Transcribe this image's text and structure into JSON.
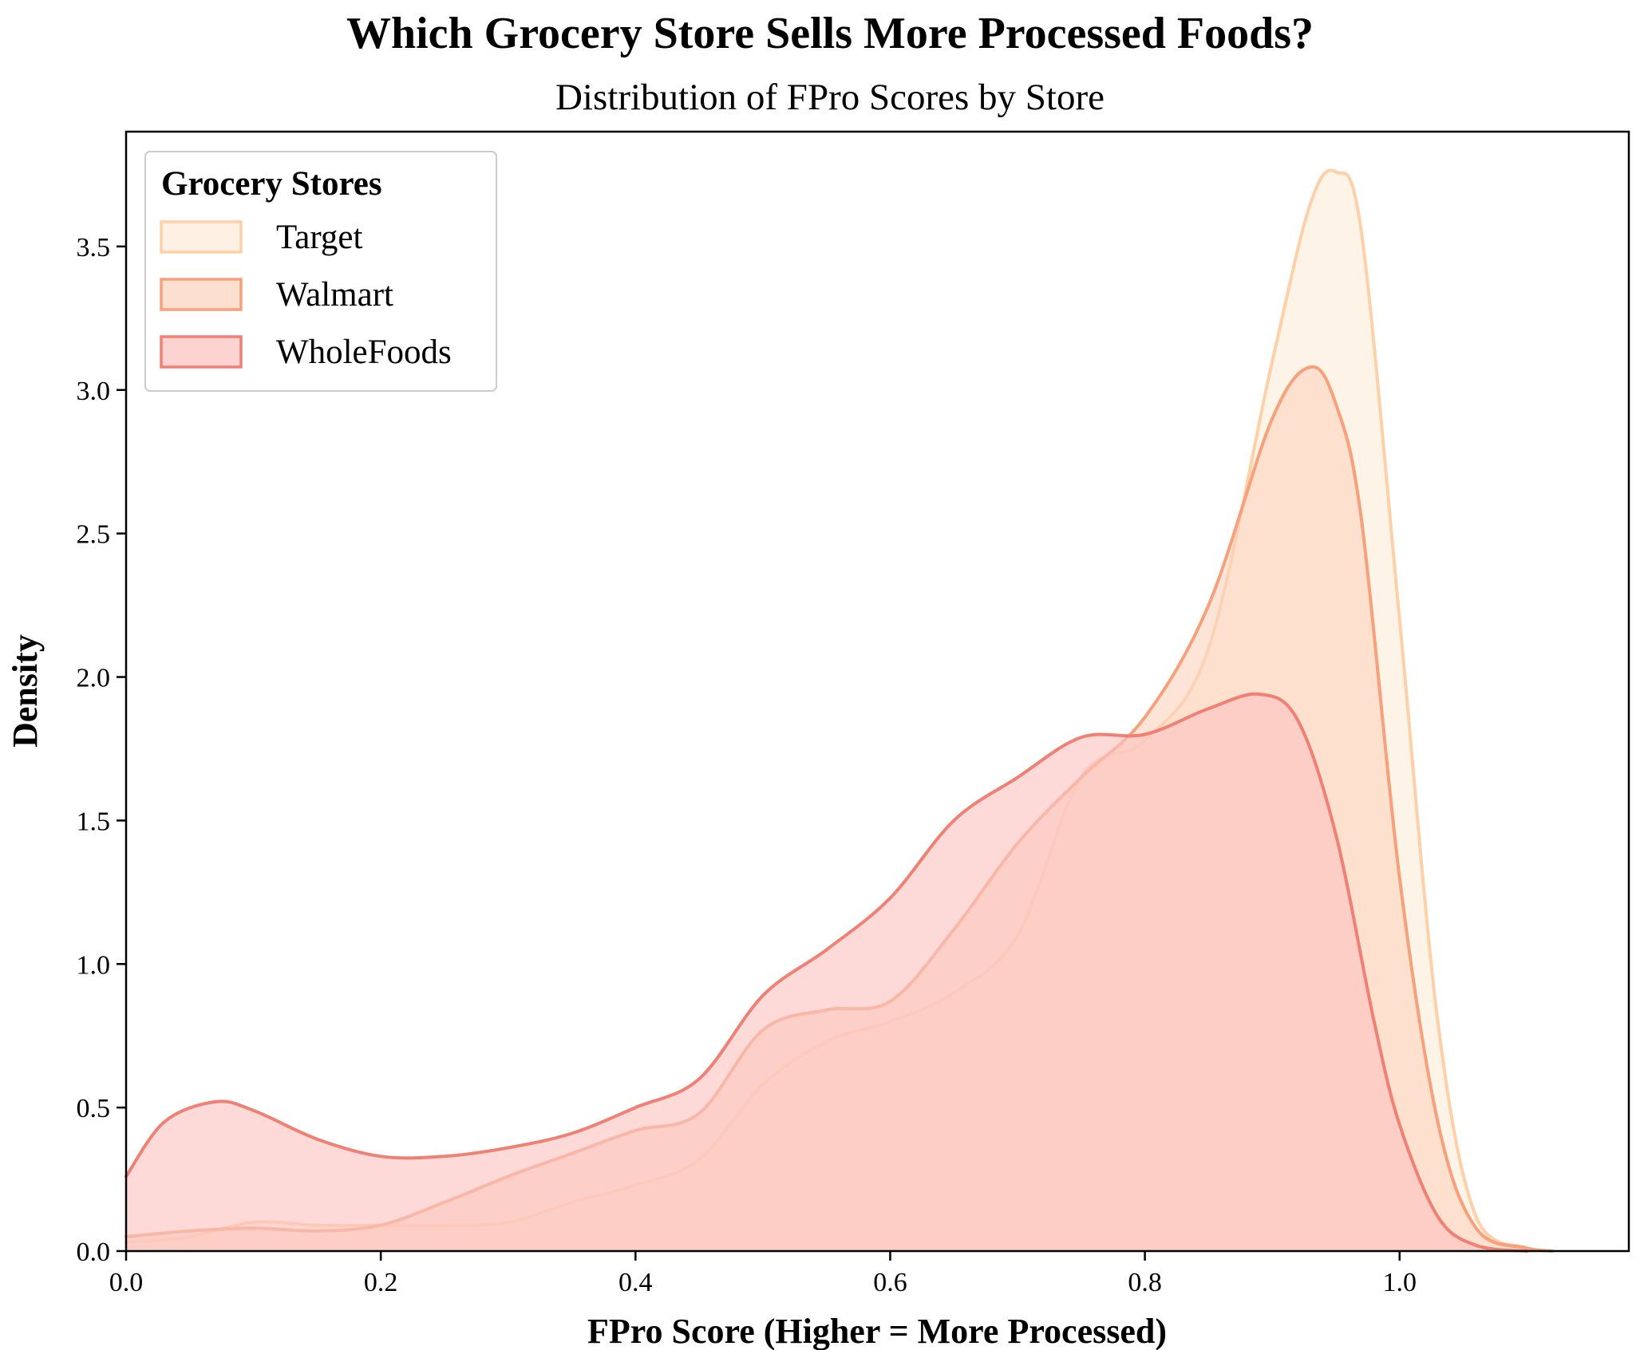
{
  "chart_data": {
    "type": "area",
    "title": "Which Grocery Store Sells More Processed Foods?",
    "subtitle": "Distribution of FPro Scores by Store",
    "xlabel": "FPro Score (Higher = More Processed)",
    "ylabel": "Density",
    "xlim": [
      0.0,
      1.18
    ],
    "ylim": [
      0.0,
      3.9
    ],
    "xticks": [
      0.0,
      0.2,
      0.4,
      0.6,
      0.8,
      1.0
    ],
    "xtick_labels": [
      "0.0",
      "0.2",
      "0.4",
      "0.6",
      "0.8",
      "1.0"
    ],
    "yticks": [
      0.0,
      0.5,
      1.0,
      1.5,
      2.0,
      2.5,
      3.0,
      3.5
    ],
    "ytick_labels": [
      "0.0",
      "0.5",
      "1.0",
      "1.5",
      "2.0",
      "2.5",
      "3.0",
      "3.5"
    ],
    "grid": false,
    "legend": {
      "title": "Grocery Stores",
      "placement": "top-left"
    },
    "series": [
      {
        "name": "Target",
        "stroke": "#fdd0a8",
        "fill": "#fdebd9",
        "x": [
          0.0,
          0.05,
          0.1,
          0.15,
          0.2,
          0.25,
          0.3,
          0.35,
          0.4,
          0.45,
          0.5,
          0.55,
          0.6,
          0.65,
          0.7,
          0.75,
          0.8,
          0.85,
          0.9,
          0.93,
          0.95,
          0.97,
          1.0,
          1.03,
          1.06,
          1.1,
          1.12
        ],
        "y": [
          0.03,
          0.05,
          0.1,
          0.09,
          0.09,
          0.09,
          0.1,
          0.17,
          0.23,
          0.32,
          0.58,
          0.73,
          0.8,
          0.9,
          1.1,
          1.65,
          1.78,
          2.1,
          3.1,
          3.65,
          3.76,
          3.55,
          2.2,
          0.8,
          0.12,
          0.01,
          0.0
        ]
      },
      {
        "name": "Walmart",
        "stroke": "#f6a07c",
        "fill": "#fbd4bf",
        "x": [
          0.0,
          0.05,
          0.1,
          0.15,
          0.2,
          0.25,
          0.3,
          0.35,
          0.4,
          0.45,
          0.5,
          0.55,
          0.6,
          0.65,
          0.7,
          0.75,
          0.8,
          0.85,
          0.9,
          0.93,
          0.95,
          0.97,
          1.0,
          1.03,
          1.06,
          1.1,
          1.12
        ],
        "y": [
          0.05,
          0.07,
          0.08,
          0.07,
          0.09,
          0.17,
          0.26,
          0.34,
          0.42,
          0.48,
          0.77,
          0.84,
          0.87,
          1.12,
          1.42,
          1.65,
          1.86,
          2.25,
          2.9,
          3.08,
          2.95,
          2.55,
          1.3,
          0.45,
          0.08,
          0.01,
          0.0
        ]
      },
      {
        "name": "WholeFoods",
        "stroke": "#f07f74",
        "fill": "#fbc4c0",
        "x": [
          0.0,
          0.03,
          0.07,
          0.1,
          0.15,
          0.2,
          0.25,
          0.3,
          0.35,
          0.4,
          0.45,
          0.5,
          0.55,
          0.6,
          0.65,
          0.7,
          0.75,
          0.8,
          0.85,
          0.89,
          0.92,
          0.95,
          0.98,
          1.0,
          1.03,
          1.06,
          1.1
        ],
        "y": [
          0.26,
          0.45,
          0.52,
          0.49,
          0.39,
          0.33,
          0.33,
          0.36,
          0.41,
          0.5,
          0.6,
          0.89,
          1.05,
          1.23,
          1.5,
          1.65,
          1.79,
          1.8,
          1.89,
          1.94,
          1.85,
          1.45,
          0.8,
          0.44,
          0.12,
          0.02,
          0.0
        ]
      }
    ]
  }
}
